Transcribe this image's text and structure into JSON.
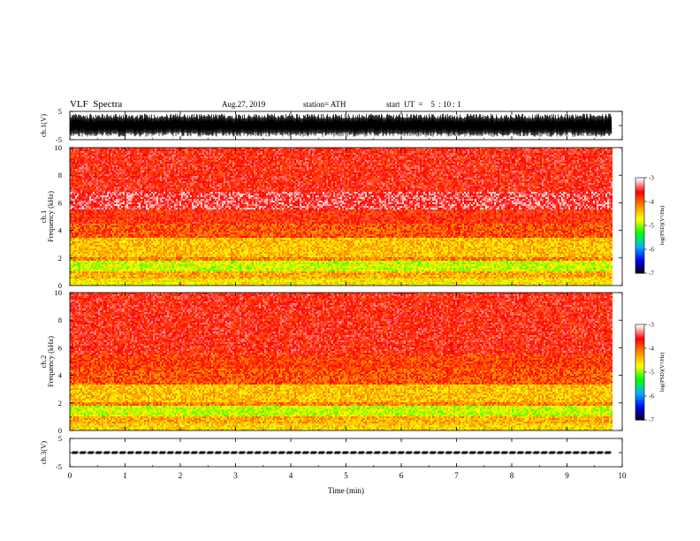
{
  "header": {
    "title": "VLF  Spectra",
    "date": "Aug.27, 2019",
    "station": "station= ATH",
    "start": "start  UT  =    5  : 10 : 1"
  },
  "colors": {
    "colormap": [
      "#000000",
      "#0000ff",
      "#00b4ff",
      "#00ff00",
      "#ffff00",
      "#ff8c00",
      "#ff0000",
      "#ffffff"
    ],
    "trace": "#000000",
    "axis": "#000000"
  },
  "chart_data": [
    {
      "type": "line",
      "panel": "ch1-waveform",
      "ylabel": "ch.1(V)",
      "ylim": [
        -5,
        5
      ],
      "yticks": [
        "5",
        "-5"
      ],
      "xlim": [
        0,
        10
      ],
      "series": [
        {
          "envelope_upper": 4.2,
          "envelope_lower": -4.0,
          "end_x": 9.8
        }
      ]
    },
    {
      "type": "heatmap",
      "panel": "ch1-spectrogram",
      "ylabel": "ch.1\nFrequency (kHz)",
      "ylabel_lines": [
        "ch.1",
        "Frequency (kHz)"
      ],
      "ylim": [
        0,
        10
      ],
      "yticks": [
        "0",
        "2",
        "4",
        "6",
        "8",
        "10"
      ],
      "xlim": [
        0,
        10
      ],
      "data_end_x": 9.8,
      "colorbar": {
        "label": "log(PSD)(V²/Hz)",
        "range": [
          -7,
          -3
        ],
        "ticks": [
          "-3",
          "-4",
          "-5",
          "-6",
          "-7"
        ]
      },
      "bands": [
        {
          "f_from": 0.0,
          "f_to": 0.5,
          "level": -4.6
        },
        {
          "f_from": 0.5,
          "f_to": 1.0,
          "level": -4.3
        },
        {
          "f_from": 1.0,
          "f_to": 1.8,
          "level": -4.8
        },
        {
          "f_from": 1.8,
          "f_to": 2.0,
          "level": -4.1
        },
        {
          "f_from": 2.0,
          "f_to": 3.4,
          "level": -4.4
        },
        {
          "f_from": 3.4,
          "f_to": 4.5,
          "level": -3.9
        },
        {
          "f_from": 4.5,
          "f_to": 5.5,
          "level": -3.7
        },
        {
          "f_from": 5.5,
          "f_to": 6.8,
          "level": -3.4
        },
        {
          "f_from": 6.8,
          "f_to": 10.0,
          "level": -3.6
        }
      ]
    },
    {
      "type": "heatmap",
      "panel": "ch2-spectrogram",
      "ylabel": "ch.2\nFrequency (kHz)",
      "ylabel_lines": [
        "ch.2",
        "Frequency (kHz)"
      ],
      "ylim": [
        0,
        10
      ],
      "yticks": [
        "0",
        "2",
        "4",
        "6",
        "8",
        "10"
      ],
      "xlim": [
        0,
        10
      ],
      "data_end_x": 9.8,
      "colorbar": {
        "label": "log(PSD)(V²/Hz)",
        "range": [
          -7,
          -3
        ],
        "ticks": [
          "-3",
          "-4",
          "-5",
          "-6",
          "-7"
        ]
      },
      "bands": [
        {
          "f_from": 0.0,
          "f_to": 0.5,
          "level": -4.5
        },
        {
          "f_from": 0.5,
          "f_to": 1.0,
          "level": -4.3
        },
        {
          "f_from": 1.0,
          "f_to": 1.8,
          "level": -4.8
        },
        {
          "f_from": 1.8,
          "f_to": 2.0,
          "level": -4.1
        },
        {
          "f_from": 2.0,
          "f_to": 3.3,
          "level": -4.4
        },
        {
          "f_from": 3.3,
          "f_to": 4.5,
          "level": -3.9
        },
        {
          "f_from": 4.5,
          "f_to": 5.5,
          "level": -3.8
        },
        {
          "f_from": 5.5,
          "f_to": 10.0,
          "level": -3.6
        }
      ]
    },
    {
      "type": "line",
      "panel": "ch3-waveform",
      "ylabel": "ch.3(V)",
      "ylim": [
        -5,
        5
      ],
      "yticks": [
        "5",
        "-5"
      ],
      "xlim": [
        0,
        10
      ],
      "xticks": [
        "0",
        "1",
        "2",
        "3",
        "4",
        "5",
        "6",
        "7",
        "8",
        "9",
        "10"
      ],
      "xlabel": "Time  (min)",
      "series": [
        {
          "center": 0.0,
          "pulse_amplitude": 0.5,
          "end_x": 9.8
        }
      ]
    }
  ]
}
